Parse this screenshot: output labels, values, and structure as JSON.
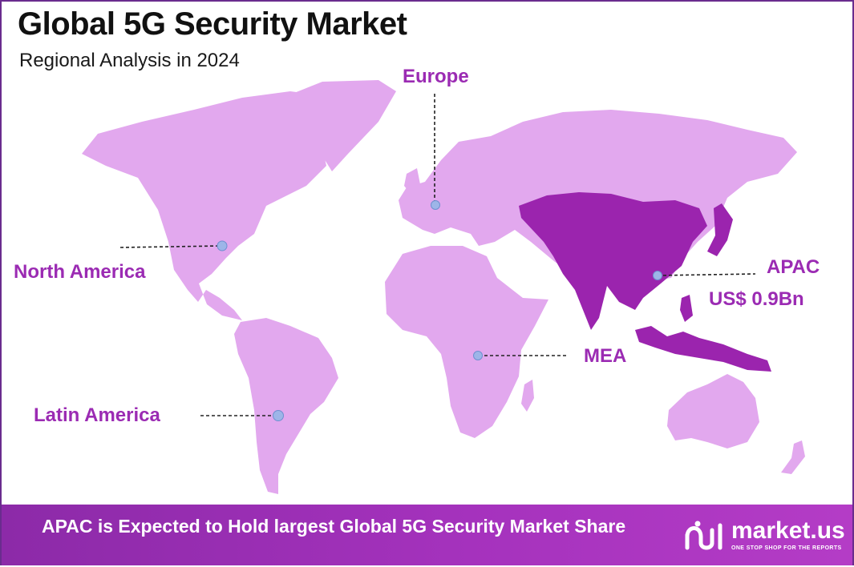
{
  "header": {
    "title": "Global 5G Security Market",
    "subtitle": "Regional Analysis in 2024"
  },
  "regions": [
    {
      "name": "North America",
      "highlighted": false
    },
    {
      "name": "Europe",
      "highlighted": false
    },
    {
      "name": "APAC",
      "value": "US$ 0.9Bn",
      "highlighted": true
    },
    {
      "name": "MEA",
      "highlighted": false
    },
    {
      "name": "Latin America",
      "highlighted": false
    }
  ],
  "colors": {
    "land": "#e2a8ee",
    "highlight": "#9b24ae",
    "label": "#9b2bb3",
    "marker": "#9db5e8",
    "footer": "#a532bd"
  },
  "footer": {
    "text": "APAC is Expected to Hold largest Global 5G Security Market Share"
  },
  "brand": {
    "name": "market.us",
    "tagline": "ONE STOP SHOP FOR THE REPORTS"
  }
}
